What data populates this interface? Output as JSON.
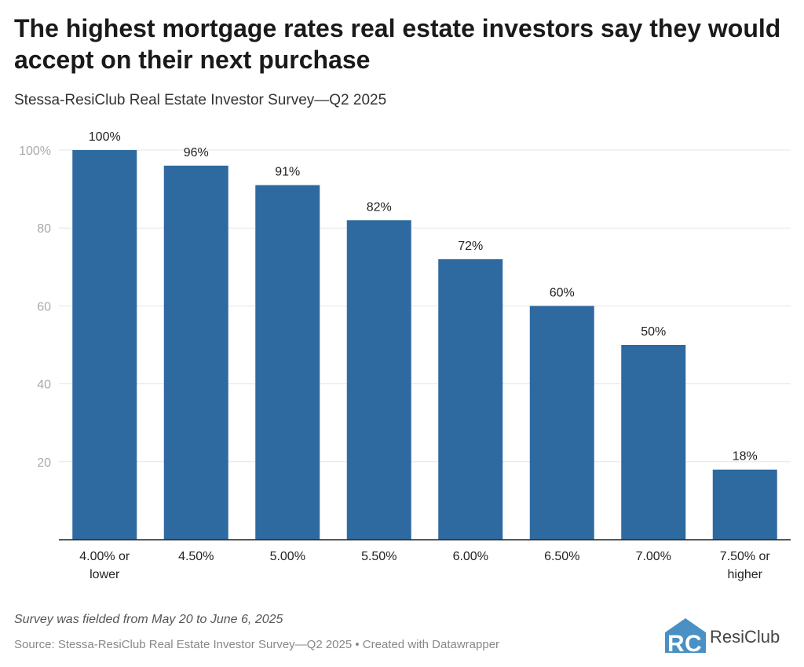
{
  "title": "The highest mortgage rates real estate investors say they would accept on their next purchase",
  "subtitle": "Stessa-ResiClub Real Estate Investor Survey—Q2 2025",
  "note": "Survey was fielded from May 20 to June 6, 2025",
  "source": "Source: Stessa-ResiClub Real Estate Investor Survey—Q2 2025 • Created with Datawrapper",
  "logo_text": "ResiClub",
  "logo_letters": "RC",
  "colors": {
    "bar": "#2e6aa0",
    "grid": "#e5e5e5",
    "axis": "#222222",
    "logo": "#4a90c4"
  },
  "chart_data": {
    "type": "bar",
    "categories": [
      [
        "4.00% or",
        "lower"
      ],
      [
        "4.50%"
      ],
      [
        "5.00%"
      ],
      [
        "5.50%"
      ],
      [
        "6.00%"
      ],
      [
        "6.50%"
      ],
      [
        "7.00%"
      ],
      [
        "7.50% or",
        "higher"
      ]
    ],
    "values": [
      100,
      96,
      91,
      82,
      72,
      60,
      50,
      18
    ],
    "data_labels": [
      "100%",
      "96%",
      "91%",
      "82%",
      "72%",
      "60%",
      "50%",
      "18%"
    ],
    "yticks": [
      20,
      40,
      60,
      80,
      100
    ],
    "ytick_labels": [
      "20",
      "40",
      "60",
      "80",
      "100%"
    ],
    "ylim": [
      0,
      100
    ],
    "grid": true,
    "xlabel": "",
    "ylabel": ""
  }
}
